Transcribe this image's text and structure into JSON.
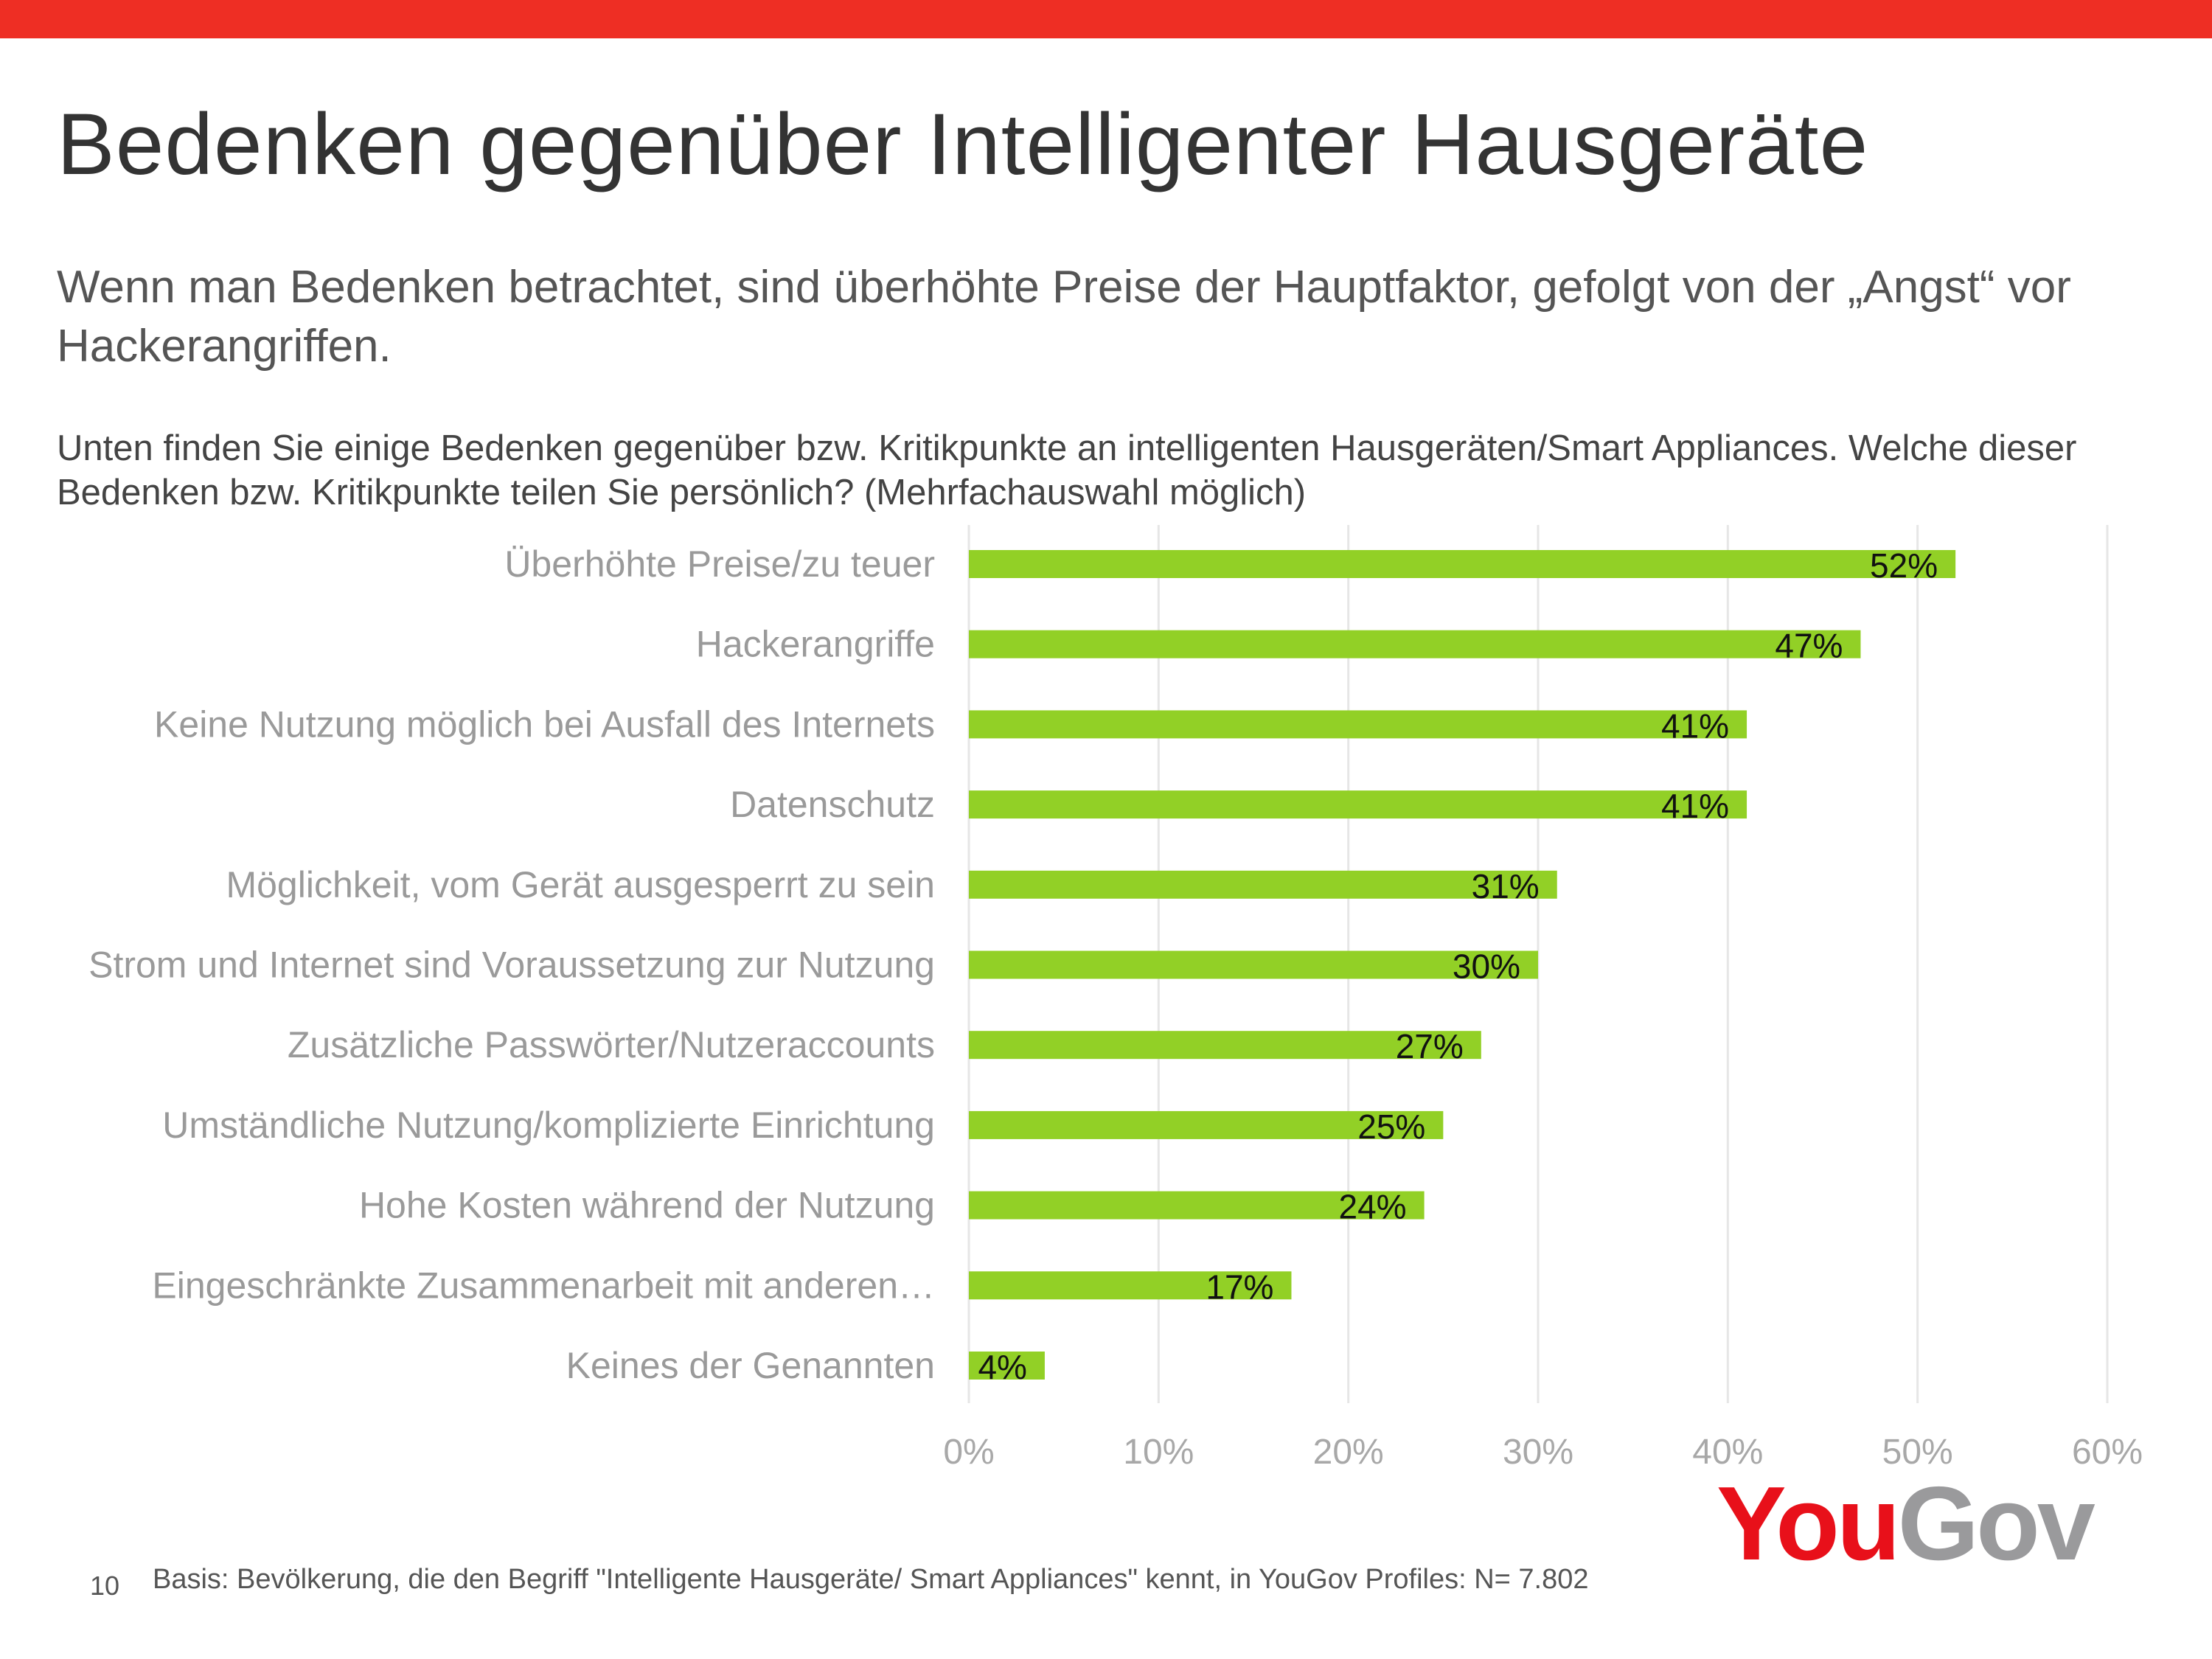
{
  "header": {
    "title": "Bedenken gegenüber Intelligenter Hausgeräte",
    "subtitle": "Wenn man Bedenken betrachtet, sind überhöhte Preise der Hauptfaktor, gefolgt von der „Angst“ vor Hackerangriffen.",
    "question": "Unten finden Sie einige Bedenken gegenüber bzw. Kritikpunkte an intelligenten Hausgeräten/Smart Appliances. Welche dieser Bedenken bzw. Kritikpunkte teilen Sie persönlich? (Mehrfachauswahl möglich)"
  },
  "colors": {
    "accent": "#ee2e24",
    "bar": "#92d026",
    "grid": "#e6e6e6"
  },
  "chart_data": {
    "type": "bar",
    "orientation": "horizontal",
    "categories": [
      "Überhöhte Preise/zu teuer",
      "Hackerangriffe",
      "Keine Nutzung möglich bei Ausfall des Internets",
      "Datenschutz",
      "Möglichkeit, vom Gerät ausgesperrt zu sein",
      "Strom und Internet sind Voraussetzung zur Nutzung",
      "Zusätzliche Passwörter/Nutzeraccounts",
      "Umständliche Nutzung/komplizierte Einrichtung",
      "Hohe Kosten während der Nutzung",
      "Eingeschränkte Zusammenarbeit mit anderen…",
      "Keines der Genannten"
    ],
    "values": [
      52,
      47,
      41,
      41,
      31,
      30,
      27,
      25,
      24,
      17,
      4
    ],
    "value_labels": [
      "52%",
      "47%",
      "41%",
      "41%",
      "31%",
      "30%",
      "27%",
      "25%",
      "24%",
      "17%",
      "4%"
    ],
    "xlim": [
      0,
      60
    ],
    "xticks": [
      0,
      10,
      20,
      30,
      40,
      50,
      60
    ],
    "xtick_labels": [
      "0%",
      "10%",
      "20%",
      "30%",
      "40%",
      "50%",
      "60%"
    ],
    "grid": true,
    "title": "",
    "xlabel": "",
    "ylabel": ""
  },
  "footer": {
    "page_number": "10",
    "note": "Basis: Bevölkerung, die den Begriff \"Intelligente Hausgeräte/ Smart Appliances\" kennt, in YouGov Profiles: N= 7.802",
    "logo_text": "YouGov"
  }
}
